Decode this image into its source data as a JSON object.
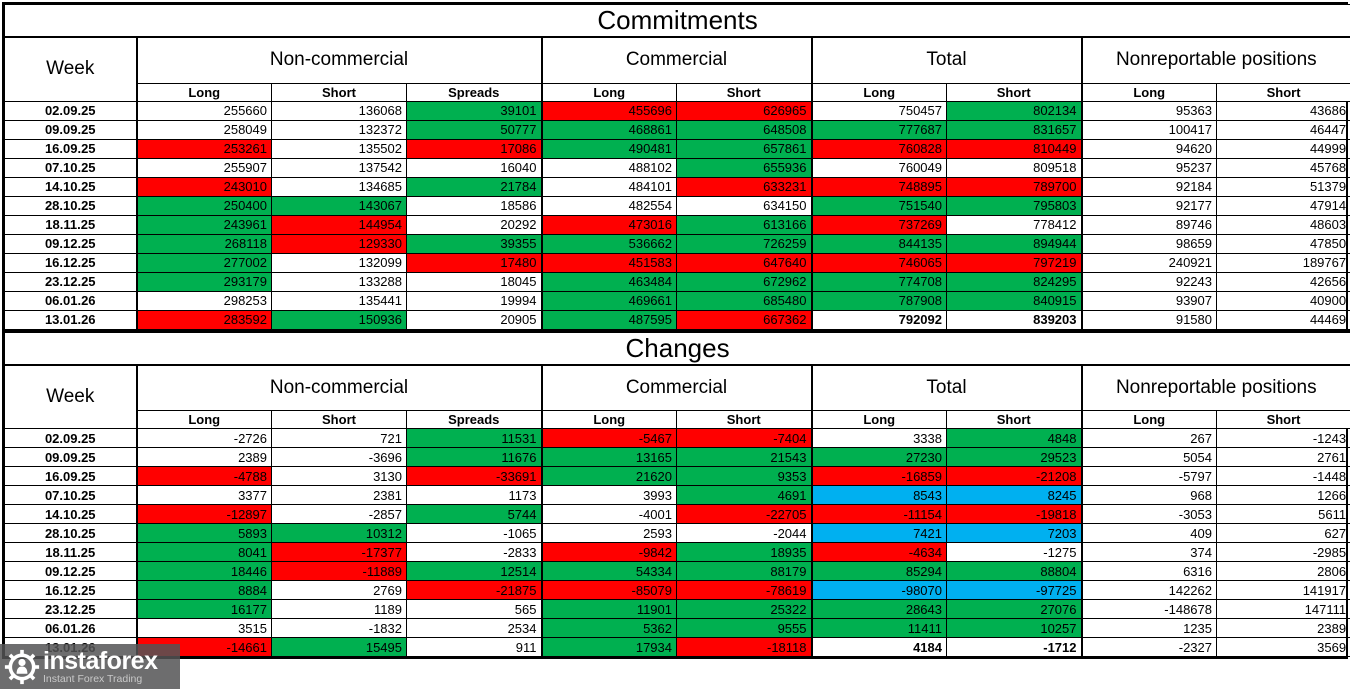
{
  "colors": {
    "green": "#00B050",
    "red": "#FF0000",
    "blue": "#00B0F0",
    "logo_bg": "#535355"
  },
  "commitments": {
    "title": "Commitments",
    "week_label": "Week",
    "group_labels": [
      "Non-commercial",
      "Commercial",
      "Total",
      "Nonreportable positions"
    ],
    "sub_labels": [
      "Long",
      "Short",
      "Spreads",
      "Long",
      "Short",
      "Long",
      "Short",
      "Long",
      "Short"
    ],
    "rows": [
      {
        "week": "02.09.25",
        "cells": [
          [
            "255660",
            "w"
          ],
          [
            "136068",
            "w"
          ],
          [
            "39101",
            "g"
          ],
          [
            "455696",
            "r"
          ],
          [
            "626965",
            "r"
          ],
          [
            "750457",
            "w"
          ],
          [
            "802134",
            "g"
          ],
          [
            "95363",
            "w"
          ],
          [
            "43686",
            "w"
          ]
        ]
      },
      {
        "week": "09.09.25",
        "cells": [
          [
            "258049",
            "w"
          ],
          [
            "132372",
            "w"
          ],
          [
            "50777",
            "g"
          ],
          [
            "468861",
            "g"
          ],
          [
            "648508",
            "g"
          ],
          [
            "777687",
            "g"
          ],
          [
            "831657",
            "g"
          ],
          [
            "100417",
            "w"
          ],
          [
            "46447",
            "w"
          ]
        ]
      },
      {
        "week": "16.09.25",
        "cells": [
          [
            "253261",
            "r"
          ],
          [
            "135502",
            "w"
          ],
          [
            "17086",
            "r"
          ],
          [
            "490481",
            "g"
          ],
          [
            "657861",
            "g"
          ],
          [
            "760828",
            "r"
          ],
          [
            "810449",
            "r"
          ],
          [
            "94620",
            "w"
          ],
          [
            "44999",
            "w"
          ]
        ]
      },
      {
        "week": "07.10.25",
        "cells": [
          [
            "255907",
            "w"
          ],
          [
            "137542",
            "w"
          ],
          [
            "16040",
            "w"
          ],
          [
            "488102",
            "w"
          ],
          [
            "655936",
            "g"
          ],
          [
            "760049",
            "w"
          ],
          [
            "809518",
            "w"
          ],
          [
            "95237",
            "w"
          ],
          [
            "45768",
            "w"
          ]
        ]
      },
      {
        "week": "14.10.25",
        "cells": [
          [
            "243010",
            "r"
          ],
          [
            "134685",
            "w"
          ],
          [
            "21784",
            "g"
          ],
          [
            "484101",
            "w"
          ],
          [
            "633231",
            "r"
          ],
          [
            "748895",
            "r"
          ],
          [
            "789700",
            "r"
          ],
          [
            "92184",
            "w"
          ],
          [
            "51379",
            "w"
          ]
        ]
      },
      {
        "week": "28.10.25",
        "cells": [
          [
            "250400",
            "g"
          ],
          [
            "143067",
            "g"
          ],
          [
            "18586",
            "w"
          ],
          [
            "482554",
            "w"
          ],
          [
            "634150",
            "w"
          ],
          [
            "751540",
            "g"
          ],
          [
            "795803",
            "g"
          ],
          [
            "92177",
            "w"
          ],
          [
            "47914",
            "w"
          ]
        ]
      },
      {
        "week": "18.11.25",
        "cells": [
          [
            "243961",
            "g"
          ],
          [
            "144954",
            "r"
          ],
          [
            "20292",
            "w"
          ],
          [
            "473016",
            "r"
          ],
          [
            "613166",
            "g"
          ],
          [
            "737269",
            "r"
          ],
          [
            "778412",
            "w"
          ],
          [
            "89746",
            "w"
          ],
          [
            "48603",
            "w"
          ]
        ]
      },
      {
        "week": "09.12.25",
        "cells": [
          [
            "268118",
            "g"
          ],
          [
            "129330",
            "r"
          ],
          [
            "39355",
            "g"
          ],
          [
            "536662",
            "g"
          ],
          [
            "726259",
            "g"
          ],
          [
            "844135",
            "g"
          ],
          [
            "894944",
            "g"
          ],
          [
            "98659",
            "w"
          ],
          [
            "47850",
            "w"
          ]
        ]
      },
      {
        "week": "16.12.25",
        "cells": [
          [
            "277002",
            "g"
          ],
          [
            "132099",
            "w"
          ],
          [
            "17480",
            "r"
          ],
          [
            "451583",
            "r"
          ],
          [
            "647640",
            "r"
          ],
          [
            "746065",
            "r"
          ],
          [
            "797219",
            "r"
          ],
          [
            "240921",
            "w"
          ],
          [
            "189767",
            "w"
          ]
        ]
      },
      {
        "week": "23.12.25",
        "cells": [
          [
            "293179",
            "g"
          ],
          [
            "133288",
            "w"
          ],
          [
            "18045",
            "w"
          ],
          [
            "463484",
            "g"
          ],
          [
            "672962",
            "g"
          ],
          [
            "774708",
            "g"
          ],
          [
            "824295",
            "g"
          ],
          [
            "92243",
            "w"
          ],
          [
            "42656",
            "w"
          ]
        ]
      },
      {
        "week": "06.01.26",
        "cells": [
          [
            "298253",
            "w"
          ],
          [
            "135441",
            "w"
          ],
          [
            "19994",
            "w"
          ],
          [
            "469661",
            "g"
          ],
          [
            "685480",
            "g"
          ],
          [
            "787908",
            "g"
          ],
          [
            "840915",
            "g"
          ],
          [
            "93907",
            "w"
          ],
          [
            "40900",
            "w"
          ]
        ]
      },
      {
        "week": "13.01.26",
        "cells": [
          [
            "283592",
            "r"
          ],
          [
            "150936",
            "g"
          ],
          [
            "20905",
            "w"
          ],
          [
            "487595",
            "g"
          ],
          [
            "667362",
            "r"
          ],
          [
            "792092",
            "wb"
          ],
          [
            "839203",
            "wb"
          ],
          [
            "91580",
            "w"
          ],
          [
            "44469",
            "w"
          ]
        ]
      }
    ]
  },
  "changes": {
    "title": "Changes",
    "week_label": "Week",
    "group_labels": [
      "Non-commercial",
      "Commercial",
      "Total",
      "Nonreportable positions"
    ],
    "sub_labels": [
      "Long",
      "Short",
      "Spreads",
      "Long",
      "Short",
      "Long",
      "Short",
      "Long",
      "Short"
    ],
    "rows": [
      {
        "week": "02.09.25",
        "cells": [
          [
            "-2726",
            "w"
          ],
          [
            "721",
            "w"
          ],
          [
            "11531",
            "g"
          ],
          [
            "-5467",
            "r"
          ],
          [
            "-7404",
            "r"
          ],
          [
            "3338",
            "w"
          ],
          [
            "4848",
            "g"
          ],
          [
            "267",
            "w"
          ],
          [
            "-1243",
            "w"
          ]
        ]
      },
      {
        "week": "09.09.25",
        "cells": [
          [
            "2389",
            "w"
          ],
          [
            "-3696",
            "w"
          ],
          [
            "11676",
            "g"
          ],
          [
            "13165",
            "g"
          ],
          [
            "21543",
            "g"
          ],
          [
            "27230",
            "g"
          ],
          [
            "29523",
            "g"
          ],
          [
            "5054",
            "w"
          ],
          [
            "2761",
            "w"
          ]
        ]
      },
      {
        "week": "16.09.25",
        "cells": [
          [
            "-4788",
            "r"
          ],
          [
            "3130",
            "w"
          ],
          [
            "-33691",
            "r"
          ],
          [
            "21620",
            "g"
          ],
          [
            "9353",
            "g"
          ],
          [
            "-16859",
            "r"
          ],
          [
            "-21208",
            "r"
          ],
          [
            "-5797",
            "w"
          ],
          [
            "-1448",
            "w"
          ]
        ]
      },
      {
        "week": "07.10.25",
        "cells": [
          [
            "3377",
            "w"
          ],
          [
            "2381",
            "w"
          ],
          [
            "1173",
            "w"
          ],
          [
            "3993",
            "w"
          ],
          [
            "4691",
            "g"
          ],
          [
            "8543",
            "b"
          ],
          [
            "8245",
            "b"
          ],
          [
            "968",
            "w"
          ],
          [
            "1266",
            "w"
          ]
        ]
      },
      {
        "week": "14.10.25",
        "cells": [
          [
            "-12897",
            "r"
          ],
          [
            "-2857",
            "w"
          ],
          [
            "5744",
            "g"
          ],
          [
            "-4001",
            "w"
          ],
          [
            "-22705",
            "r"
          ],
          [
            "-11154",
            "r"
          ],
          [
            "-19818",
            "r"
          ],
          [
            "-3053",
            "w"
          ],
          [
            "5611",
            "w"
          ]
        ]
      },
      {
        "week": "28.10.25",
        "cells": [
          [
            "5893",
            "g"
          ],
          [
            "10312",
            "g"
          ],
          [
            "-1065",
            "w"
          ],
          [
            "2593",
            "w"
          ],
          [
            "-2044",
            "w"
          ],
          [
            "7421",
            "b"
          ],
          [
            "7203",
            "b"
          ],
          [
            "409",
            "w"
          ],
          [
            "627",
            "w"
          ]
        ]
      },
      {
        "week": "18.11.25",
        "cells": [
          [
            "8041",
            "g"
          ],
          [
            "-17377",
            "r"
          ],
          [
            "-2833",
            "w"
          ],
          [
            "-9842",
            "r"
          ],
          [
            "18935",
            "g"
          ],
          [
            "-4634",
            "r"
          ],
          [
            "-1275",
            "w"
          ],
          [
            "374",
            "w"
          ],
          [
            "-2985",
            "w"
          ]
        ]
      },
      {
        "week": "09.12.25",
        "cells": [
          [
            "18446",
            "g"
          ],
          [
            "-11889",
            "r"
          ],
          [
            "12514",
            "g"
          ],
          [
            "54334",
            "g"
          ],
          [
            "88179",
            "g"
          ],
          [
            "85294",
            "g"
          ],
          [
            "88804",
            "g"
          ],
          [
            "6316",
            "w"
          ],
          [
            "2806",
            "w"
          ]
        ]
      },
      {
        "week": "16.12.25",
        "cells": [
          [
            "8884",
            "g"
          ],
          [
            "2769",
            "w"
          ],
          [
            "-21875",
            "r"
          ],
          [
            "-85079",
            "r"
          ],
          [
            "-78619",
            "r"
          ],
          [
            "-98070",
            "b"
          ],
          [
            "-97725",
            "b"
          ],
          [
            "142262",
            "w"
          ],
          [
            "141917",
            "w"
          ]
        ]
      },
      {
        "week": "23.12.25",
        "cells": [
          [
            "16177",
            "g"
          ],
          [
            "1189",
            "w"
          ],
          [
            "565",
            "w"
          ],
          [
            "11901",
            "g"
          ],
          [
            "25322",
            "g"
          ],
          [
            "28643",
            "g"
          ],
          [
            "27076",
            "g"
          ],
          [
            "-148678",
            "w"
          ],
          [
            "147111",
            "w"
          ]
        ]
      },
      {
        "week": "06.01.26",
        "cells": [
          [
            "3515",
            "w"
          ],
          [
            "-1832",
            "w"
          ],
          [
            "2534",
            "w"
          ],
          [
            "5362",
            "g"
          ],
          [
            "9555",
            "g"
          ],
          [
            "11411",
            "g"
          ],
          [
            "10257",
            "g"
          ],
          [
            "1235",
            "w"
          ],
          [
            "2389",
            "w"
          ]
        ]
      },
      {
        "week": "13.01.26",
        "cells": [
          [
            "-14661",
            "r"
          ],
          [
            "15495",
            "g"
          ],
          [
            "911",
            "w"
          ],
          [
            "17934",
            "g"
          ],
          [
            "-18118",
            "r"
          ],
          [
            "4184",
            "wb"
          ],
          [
            "-1712",
            "wb"
          ],
          [
            "-2327",
            "w"
          ],
          [
            "3569",
            "w"
          ]
        ]
      }
    ]
  },
  "logo": {
    "name": "instaforex",
    "tagline": "Instant Forex Trading"
  }
}
